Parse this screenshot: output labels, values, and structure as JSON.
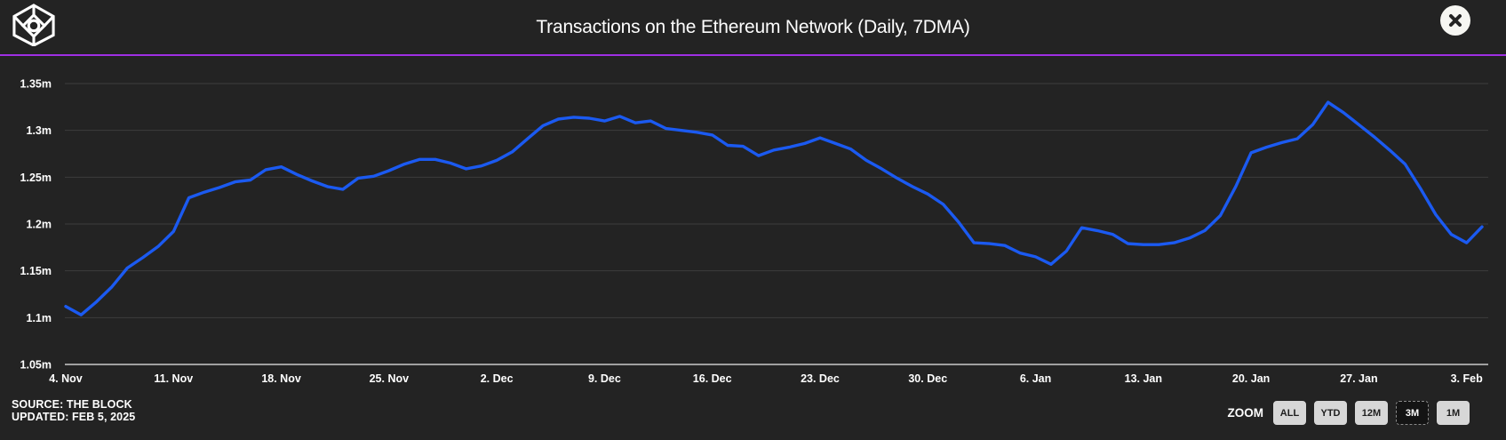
{
  "header": {
    "title": "Transactions on the Ethereum Network (Daily, 7DMA)"
  },
  "icons": {
    "logo": "the-block-cube-logo",
    "close": "close-x-icon"
  },
  "colors": {
    "background": "#232323",
    "accent_purple": "#9e2fe3",
    "line_blue": "#1b5af1",
    "gridline": "#3d3d3d",
    "axis_line": "#a0a0a0",
    "text": "#ffffff",
    "button_bg": "#d7d7d7",
    "button_active_bg": "#141414"
  },
  "chart_data": {
    "type": "line",
    "title": "Transactions on the Ethereum Network (Daily, 7DMA)",
    "unit": "millions of transactions per day",
    "frequency": "daily (7-day moving average)",
    "x_start": "2024-11-04",
    "x_end": "2025-02-04",
    "ylim": [
      1.05,
      1.35
    ],
    "grid": "horizontal",
    "legend": "none",
    "y_ticks": [
      {
        "v": 1.35,
        "label": "1.35m"
      },
      {
        "v": 1.3,
        "label": "1.3m"
      },
      {
        "v": 1.25,
        "label": "1.25m"
      },
      {
        "v": 1.2,
        "label": "1.2m"
      },
      {
        "v": 1.15,
        "label": "1.15m"
      },
      {
        "v": 1.1,
        "label": "1.1m"
      },
      {
        "v": 1.05,
        "label": "1.05m"
      }
    ],
    "x_ticks": [
      {
        "day": 0,
        "label": "4. Nov"
      },
      {
        "day": 7,
        "label": "11. Nov"
      },
      {
        "day": 14,
        "label": "18. Nov"
      },
      {
        "day": 21,
        "label": "25. Nov"
      },
      {
        "day": 28,
        "label": "2. Dec"
      },
      {
        "day": 35,
        "label": "9. Dec"
      },
      {
        "day": 42,
        "label": "16. Dec"
      },
      {
        "day": 49,
        "label": "23. Dec"
      },
      {
        "day": 56,
        "label": "30. Dec"
      },
      {
        "day": 63,
        "label": "6. Jan"
      },
      {
        "day": 70,
        "label": "13. Jan"
      },
      {
        "day": 77,
        "label": "20. Jan"
      },
      {
        "day": 84,
        "label": "27. Jan"
      },
      {
        "day": 91,
        "label": "3. Feb"
      }
    ],
    "dates": [
      "2024-11-04",
      "2024-11-05",
      "2024-11-06",
      "2024-11-07",
      "2024-11-08",
      "2024-11-09",
      "2024-11-10",
      "2024-11-11",
      "2024-11-12",
      "2024-11-13",
      "2024-11-14",
      "2024-11-15",
      "2024-11-16",
      "2024-11-17",
      "2024-11-18",
      "2024-11-19",
      "2024-11-20",
      "2024-11-21",
      "2024-11-22",
      "2024-11-23",
      "2024-11-24",
      "2024-11-25",
      "2024-11-26",
      "2024-11-27",
      "2024-11-28",
      "2024-11-29",
      "2024-11-30",
      "2024-12-01",
      "2024-12-02",
      "2024-12-03",
      "2024-12-04",
      "2024-12-05",
      "2024-12-06",
      "2024-12-07",
      "2024-12-08",
      "2024-12-09",
      "2024-12-10",
      "2024-12-11",
      "2024-12-12",
      "2024-12-13",
      "2024-12-14",
      "2024-12-15",
      "2024-12-16",
      "2024-12-17",
      "2024-12-18",
      "2024-12-19",
      "2024-12-20",
      "2024-12-21",
      "2024-12-22",
      "2024-12-23",
      "2024-12-24",
      "2024-12-25",
      "2024-12-26",
      "2024-12-27",
      "2024-12-28",
      "2024-12-29",
      "2024-12-30",
      "2024-12-31",
      "2025-01-01",
      "2025-01-02",
      "2025-01-03",
      "2025-01-04",
      "2025-01-05",
      "2025-01-06",
      "2025-01-07",
      "2025-01-08",
      "2025-01-09",
      "2025-01-10",
      "2025-01-11",
      "2025-01-12",
      "2025-01-13",
      "2025-01-14",
      "2025-01-15",
      "2025-01-16",
      "2025-01-17",
      "2025-01-18",
      "2025-01-19",
      "2025-01-20",
      "2025-01-21",
      "2025-01-22",
      "2025-01-23",
      "2025-01-24",
      "2025-01-25",
      "2025-01-26",
      "2025-01-27",
      "2025-01-28",
      "2025-01-29",
      "2025-01-30",
      "2025-01-31",
      "2025-02-01",
      "2025-02-02",
      "2025-02-03",
      "2025-02-04"
    ],
    "values": [
      1.112,
      1.103,
      1.117,
      1.133,
      1.153,
      1.164,
      1.176,
      1.192,
      1.228,
      1.234,
      1.239,
      1.245,
      1.247,
      1.258,
      1.261,
      1.253,
      1.246,
      1.24,
      1.237,
      1.249,
      1.251,
      1.257,
      1.264,
      1.269,
      1.269,
      1.265,
      1.259,
      1.262,
      1.268,
      1.277,
      1.291,
      1.305,
      1.312,
      1.314,
      1.313,
      1.31,
      1.315,
      1.308,
      1.31,
      1.302,
      1.3,
      1.298,
      1.295,
      1.284,
      1.283,
      1.273,
      1.279,
      1.282,
      1.286,
      1.292,
      1.286,
      1.28,
      1.268,
      1.259,
      1.249,
      1.24,
      1.232,
      1.221,
      1.202,
      1.18,
      1.179,
      1.177,
      1.169,
      1.165,
      1.157,
      1.171,
      1.196,
      1.193,
      1.189,
      1.179,
      1.178,
      1.178,
      1.18,
      1.185,
      1.193,
      1.209,
      1.24,
      1.276,
      1.282,
      1.287,
      1.291,
      1.306,
      1.33,
      1.319,
      1.306,
      1.293,
      1.279,
      1.264,
      1.238,
      1.21,
      1.189,
      1.18,
      1.197
    ]
  },
  "footer": {
    "source": "SOURCE: THE BLOCK",
    "updated": "UPDATED: FEB 5, 2025",
    "zoom_label": "ZOOM",
    "zoom_buttons": [
      {
        "label": "ALL",
        "active": false
      },
      {
        "label": "YTD",
        "active": false
      },
      {
        "label": "12M",
        "active": false
      },
      {
        "label": "3M",
        "active": true
      },
      {
        "label": "1M",
        "active": false
      }
    ]
  }
}
